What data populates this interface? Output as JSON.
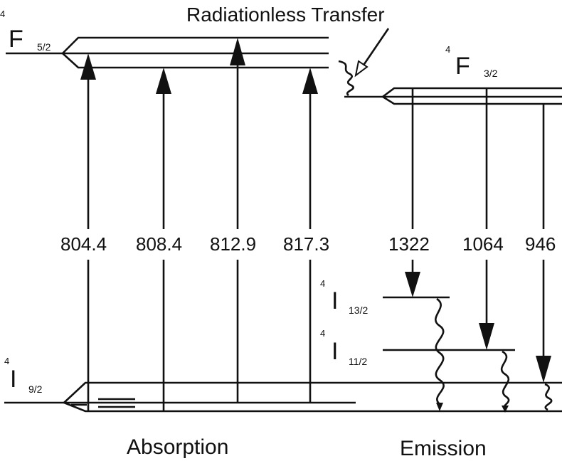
{
  "title": "Radiationless Transfer",
  "levels": {
    "f52": {
      "sup": "4",
      "sym": "F",
      "sub": "5/2"
    },
    "f32": {
      "sup": "4",
      "sym": "F",
      "sub": "3/2"
    },
    "i132": {
      "sup": "4",
      "sym": "I",
      "sub": "13/2"
    },
    "i112": {
      "sup": "4",
      "sym": "I",
      "sub": "11/2"
    },
    "i92": {
      "sup": "4",
      "sym": "I",
      "sub": "9/2"
    }
  },
  "absorption": {
    "label": "Absorption",
    "wavelengths": [
      "804.4",
      "808.4",
      "812.9",
      "817.3"
    ]
  },
  "emission": {
    "label": "Emission",
    "wavelengths": [
      "1322",
      "1064",
      "946"
    ]
  }
}
